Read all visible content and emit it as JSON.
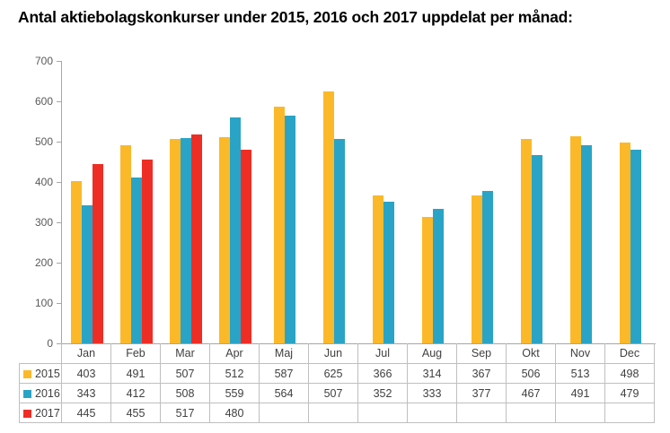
{
  "title": "Antal aktiebolagskonkurser under 2015, 2016 och 2017 uppdelat per månad:",
  "chart_data": {
    "type": "bar",
    "title": "Antal aktiebolagskonkurser under 2015, 2016 och 2017 uppdelat per månad:",
    "categories": [
      "Jan",
      "Feb",
      "Mar",
      "Apr",
      "Maj",
      "Jun",
      "Jul",
      "Aug",
      "Sep",
      "Okt",
      "Nov",
      "Dec"
    ],
    "series": [
      {
        "name": "2015",
        "color": "#FBB929",
        "values": [
          403,
          491,
          507,
          512,
          587,
          625,
          366,
          314,
          367,
          506,
          513,
          498
        ]
      },
      {
        "name": "2016",
        "color": "#29A4C6",
        "values": [
          343,
          412,
          508,
          559,
          564,
          507,
          352,
          333,
          377,
          467,
          491,
          479
        ]
      },
      {
        "name": "2017",
        "color": "#EE2E24",
        "values": [
          445,
          455,
          517,
          480,
          null,
          null,
          null,
          null,
          null,
          null,
          null,
          null
        ]
      }
    ],
    "xlabel": "",
    "ylabel": "",
    "ylim": [
      0,
      700
    ],
    "yticks": [
      0,
      100,
      200,
      300,
      400,
      500,
      600,
      700
    ],
    "grid": false,
    "legend_position": "table-left",
    "axis_color": "#A6A6A6",
    "table_border_color": "#BFBFBF",
    "text_color": "#404040"
  }
}
